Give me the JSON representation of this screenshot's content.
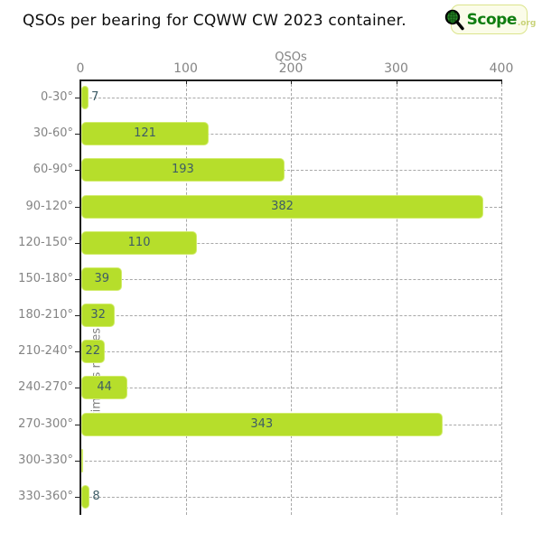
{
  "header": {
    "title": "QSOs per bearing for CQWW CW 2023 container."
  },
  "logo": {
    "icon": "magnifier-globe-icon",
    "text": "Scope",
    "suffix": ".org"
  },
  "chart_data": {
    "type": "bar",
    "orientation": "horizontal",
    "title": "QSOs per bearing for CQWW CW 2023 container.",
    "xlabel": "QSOs",
    "ylabel": "Azimuths ranges",
    "categories": [
      "0-30°",
      "30-60°",
      "60-90°",
      "90-120°",
      "120-150°",
      "150-180°",
      "180-210°",
      "210-240°",
      "240-270°",
      "270-300°",
      "300-330°",
      "330-360°"
    ],
    "values": [
      7,
      121,
      193,
      382,
      110,
      39,
      32,
      22,
      44,
      343,
      0,
      8
    ],
    "xlim": [
      0,
      400
    ],
    "xticks": [
      0,
      100,
      200,
      300,
      400
    ],
    "grid": "dashed",
    "legend_position": "none",
    "value_labels_shown": [
      "7",
      "121",
      "193",
      "382",
      "110",
      "39",
      "32",
      "22",
      "44",
      "343",
      "",
      "8"
    ],
    "colors": {
      "bar_fill": "#b6de2b",
      "bar_border": "#d2ec6e",
      "value_label": "#3d5c66",
      "axis_text": "#848484",
      "gridline": "#a8a8a8",
      "axis_line": "#1f1f1f",
      "title": "#0d0d0d"
    }
  }
}
